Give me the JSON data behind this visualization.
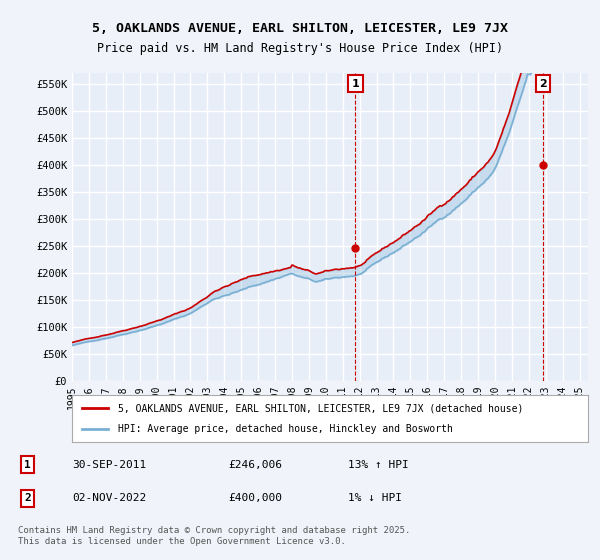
{
  "title1": "5, OAKLANDS AVENUE, EARL SHILTON, LEICESTER, LE9 7JX",
  "title2": "Price paid vs. HM Land Registry's House Price Index (HPI)",
  "ylabel_ticks": [
    "£0",
    "£50K",
    "£100K",
    "£150K",
    "£200K",
    "£250K",
    "£300K",
    "£350K",
    "£400K",
    "£450K",
    "£500K",
    "£550K"
  ],
  "ytick_vals": [
    0,
    50000,
    100000,
    150000,
    200000,
    250000,
    300000,
    350000,
    400000,
    450000,
    500000,
    550000
  ],
  "ylim": [
    0,
    570000
  ],
  "background_color": "#f0f4fa",
  "plot_bg": "#e8eef8",
  "grid_color": "#ffffff",
  "sale1_date_num": 16.75,
  "sale1_price": 246006,
  "sale1_label": "1",
  "sale2_date_num": 27.85,
  "sale2_price": 400000,
  "sale2_label": "2",
  "legend_line1": "5, OAKLANDS AVENUE, EARL SHILTON, LEICESTER, LE9 7JX (detached house)",
  "legend_line2": "HPI: Average price, detached house, Hinckley and Bosworth",
  "table_row1": [
    "1",
    "30-SEP-2011",
    "£246,006",
    "13% ↑ HPI"
  ],
  "table_row2": [
    "2",
    "02-NOV-2022",
    "£400,000",
    "1% ↓ HPI"
  ],
  "footer": "Contains HM Land Registry data © Crown copyright and database right 2025.\nThis data is licensed under the Open Government Licence v3.0.",
  "line_color_property": "#cc0000",
  "line_color_hpi": "#7ab0d4",
  "vline_color": "#cc0000"
}
